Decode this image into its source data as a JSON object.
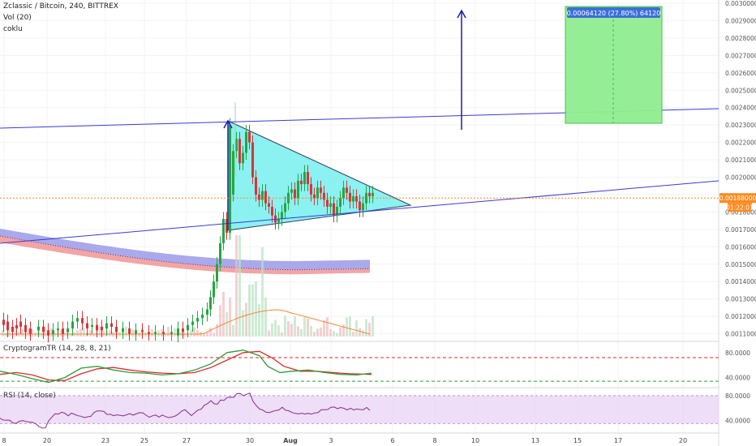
{
  "header": {
    "symbol_line": "Zclassic / Bitcoin, 240, BITTREX",
    "volume_label": "Vol (20)",
    "user": "coklu"
  },
  "indicators": {
    "cryptogram_label": "CryptogramTR (14, 28, 8, 21)",
    "rsi_label": "RSI (14, close)"
  },
  "price_axis": {
    "ticks": [
      "0.00300000",
      "0.00290000",
      "0.00280000",
      "0.00270000",
      "0.00260000",
      "0.00250000",
      "0.00240000",
      "0.00230000",
      "0.00220000",
      "0.00210000",
      "0.00200000",
      "0.00190000",
      "0.00180000",
      "0.00170000",
      "0.00160000",
      "0.00150000",
      "0.00140000",
      "0.00130000",
      "0.00120000",
      "0.00110000"
    ],
    "tick_values": [
      0.003,
      0.0029,
      0.0028,
      0.0027,
      0.0026,
      0.0025,
      0.0024,
      0.0023,
      0.0022,
      0.0021,
      0.002,
      0.0019,
      0.0018,
      0.0017,
      0.0016,
      0.0015,
      0.0014,
      0.0013,
      0.0012,
      0.0011
    ],
    "current_price": "0.00188000",
    "current_price_value": 0.00188,
    "countdown": "01:22:01",
    "label_color": "#ff8a1f"
  },
  "cryptogram_axis": {
    "ticks": [
      "80.0000",
      "40.0000"
    ],
    "tick_values": [
      80,
      40
    ]
  },
  "rsi_axis": {
    "ticks": [
      "80.0000",
      "40.0000"
    ],
    "tick_values": [
      80,
      40
    ]
  },
  "time_axis": {
    "labels": [
      "8",
      "20",
      "23",
      "25",
      "27",
      "30",
      "Aug",
      "3",
      "6",
      "8",
      "10",
      "13",
      "15",
      "17",
      "20"
    ]
  },
  "target_box": {
    "label": "0.00064120 (27.80%) 64120",
    "top": 0.00295,
    "bottom": 0.00231,
    "fill": "#90ee90",
    "border": "#3fbf3f"
  },
  "chart_data": {
    "type": "candlestick",
    "title": "Zclassic / Bitcoin, 240, BITTREX",
    "ylim": [
      0.00105,
      0.00305
    ],
    "note_levels": {
      "oscillator_upper": 72,
      "oscillator_lower": 34
    },
    "colors": {
      "up": "#26a641",
      "down": "#d8343a",
      "triangle_fill": "#7ff0f0",
      "trendline": "#3a3ad8",
      "arrow": "#1c1ca8",
      "ma_fill_upper": "#9a9ae8",
      "ma_fill_lower": "#f29a9a",
      "osc_green": "#2e9c3a",
      "osc_red": "#e02a2a",
      "rsi_line": "#8a2a8a",
      "rsi_band": "#ead6f5"
    }
  }
}
